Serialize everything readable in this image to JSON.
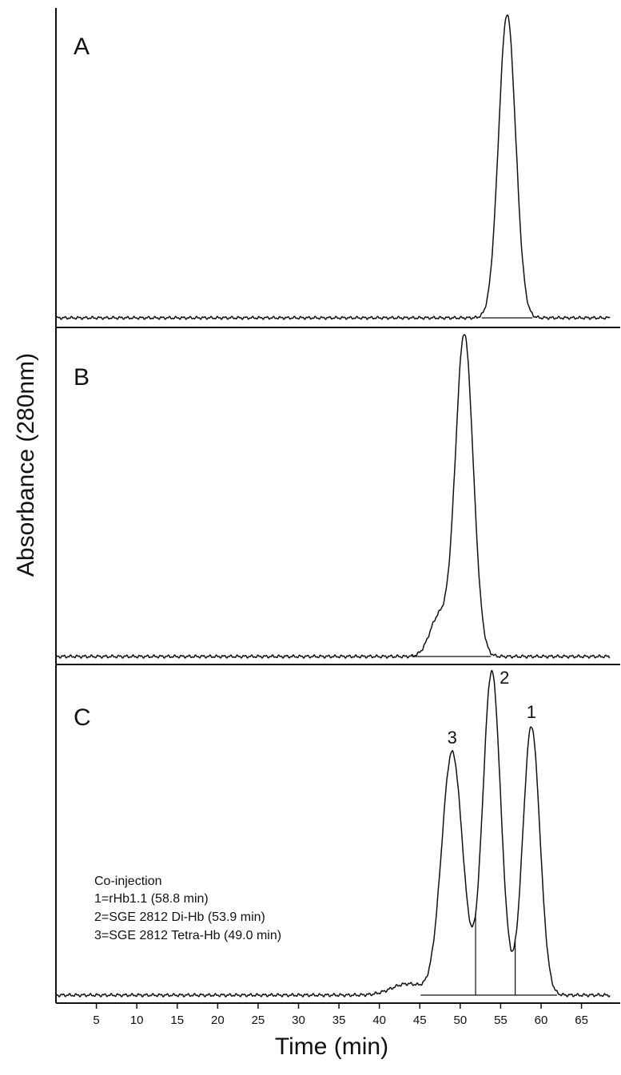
{
  "chart_data": {
    "type": "line",
    "xlabel": "Time (min)",
    "ylabel": "Absorbance (280nm)",
    "xlim": [
      0,
      68.5
    ],
    "xticks": [
      5,
      10,
      15,
      20,
      25,
      30,
      35,
      40,
      45,
      50,
      55,
      60,
      65
    ],
    "grid": false,
    "panels": [
      {
        "label": "A",
        "ylim": [
          0,
          1.02
        ],
        "baseline": 0.0,
        "peaks": [
          {
            "center": 55.8,
            "height": 1.0,
            "sigma": 1.05
          }
        ],
        "peak_labels": []
      },
      {
        "label": "B",
        "ylim": [
          0,
          1.02
        ],
        "baseline": 0.0,
        "peaks": [
          {
            "center": 50.5,
            "height": 1.0,
            "sigma": 1.1
          },
          {
            "center": 47.3,
            "height": 0.12,
            "sigma": 1.1
          }
        ],
        "peak_labels": []
      },
      {
        "label": "C",
        "ylim": [
          0,
          1.02
        ],
        "baseline": 0.0,
        "peaks": [
          {
            "center": 49.0,
            "height": 0.75,
            "sigma": 1.3
          },
          {
            "center": 53.9,
            "height": 1.0,
            "sigma": 1.1
          },
          {
            "center": 58.8,
            "height": 0.83,
            "sigma": 1.05
          },
          {
            "center": 43.5,
            "height": 0.035,
            "sigma": 2.0
          }
        ],
        "peak_labels": [
          {
            "text": "3",
            "x": 49.0
          },
          {
            "text": "2",
            "x": 53.9
          },
          {
            "text": "1",
            "x": 58.8
          }
        ],
        "drop_lines": [
          51.9,
          56.8
        ],
        "legend": [
          "Co-injection",
          "1=rHb1.1 (58.8 min)",
          "2=SGE 2812 Di-Hb (53.9 min)",
          "3=SGE 2812 Tetra-Hb (49.0 min)"
        ]
      }
    ]
  }
}
